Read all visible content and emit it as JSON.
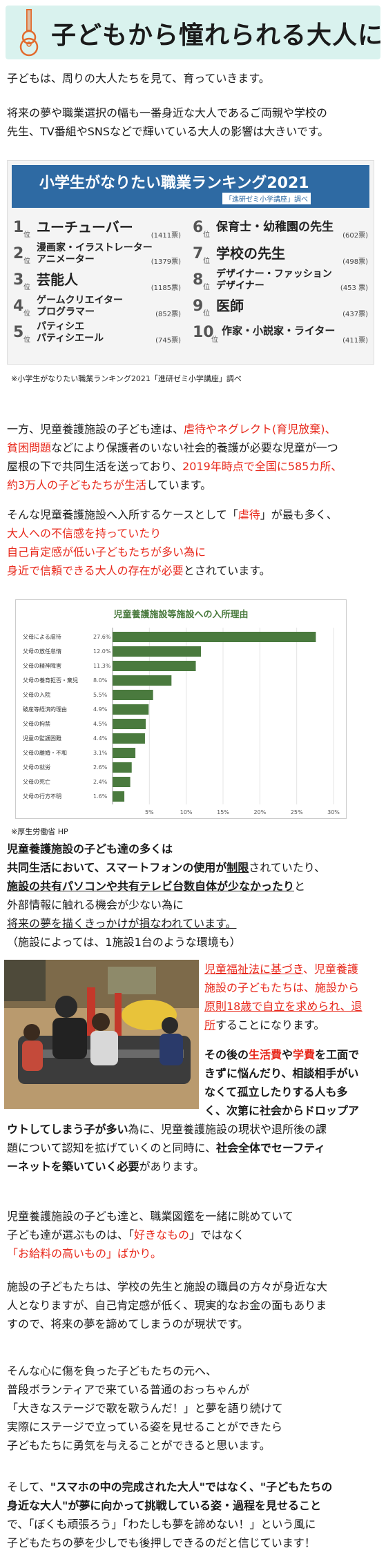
{
  "header": {
    "title": "子どもから憧れられる大人に",
    "bg_color": "#d9f2ee"
  },
  "intro": {
    "l1": "子どもは、周りの大人たちを見て、育っていきます。",
    "l2": "将来の夢や職業選択の幅も一番身近な大人であるご両親や学校の",
    "l3": "先生、TV番組やSNSなどで輝いている大人の影響は大きいです。"
  },
  "ranking": {
    "title": "小学生がなりたい職業ランキング2021",
    "subtitle": "「進研ゼミ小学講座」調べ",
    "items": [
      {
        "rank": "1",
        "pos": "位",
        "name1": "ユーチューバー",
        "name2": "",
        "votes": "(1411票)"
      },
      {
        "rank": "2",
        "pos": "位",
        "name1": "漫画家・イラストレーター",
        "name2": "アニメーター",
        "votes": "(1379票)"
      },
      {
        "rank": "3",
        "pos": "位",
        "name1": "芸能人",
        "name2": "",
        "votes": "(1185票)"
      },
      {
        "rank": "4",
        "pos": "位",
        "name1": "ゲームクリエイター",
        "name2": "プログラマー",
        "votes": "(852票)"
      },
      {
        "rank": "5",
        "pos": "位",
        "name1": "パティシエ",
        "name2": "パティシエール",
        "votes": "(745票)"
      },
      {
        "rank": "6",
        "pos": "位",
        "name1": "保育士・幼稚園の先生",
        "name2": "",
        "votes": "(602票)"
      },
      {
        "rank": "7",
        "pos": "位",
        "name1": "学校の先生",
        "name2": "",
        "votes": "(498票)"
      },
      {
        "rank": "8",
        "pos": "位",
        "name1": "デザイナー・ファッション",
        "name2": "デザイナー",
        "votes": "(453 票)"
      },
      {
        "rank": "9",
        "pos": "位",
        "name1": "医師",
        "name2": "",
        "votes": "(437票)"
      },
      {
        "rank": "10",
        "pos": "位",
        "name1": "作家・小説家・ライター",
        "name2": "",
        "votes": "(411票)"
      }
    ],
    "caption": "※小学生がなりたい職業ランキング2021「進研ゼミ小学講座」調べ"
  },
  "sec2": {
    "l1a": "一方、児童養護施設の子ども達は、",
    "l1b": "虐待やネグレクト(育児放棄)、",
    "l2a": "貧困問題",
    "l2b": "などにより保護者のいない社会的養護が必要な児童が一つ",
    "l3a": "屋根の下で共同生活を送っており、",
    "l3b": "2019年時点で全国に585カ所、",
    "l4a": "約3万人の子どもたちが生活",
    "l4b": "しています。"
  },
  "sec3": {
    "l1a": "そんな児童養護施設へ入所するケースとして「",
    "l1b": "虐待",
    "l1c": "」が最も多く、",
    "l2": "大人への不信感を持っていたり",
    "l3": "自己肯定感が低い子どもたちが多い為に",
    "l4a": "身近で信頼できる大人の存在が必要",
    "l4b": "とされています。"
  },
  "chart_data": {
    "type": "bar",
    "title": "児童養護施設等施設への入所理由",
    "categories": [
      "父母による虐待",
      "父母の放任怠惰",
      "父母の精神障害",
      "父母の養育拒否・棄児",
      "父母の入院",
      "破産等経済的理由",
      "父母の拘禁",
      "児童の監護困難",
      "父母の離婚・不和",
      "父母の就労",
      "父母の死亡",
      "父母の行方不明"
    ],
    "values": [
      27.6,
      12.0,
      11.3,
      8.0,
      5.5,
      4.9,
      4.5,
      4.4,
      3.1,
      2.6,
      2.4,
      1.6
    ],
    "labels": [
      "27.6%",
      "12.0%",
      "11.3%",
      "8.0%",
      "5.5%",
      "4.9%",
      "4.5%",
      "4.4%",
      "3.1%",
      "2.6%",
      "2.4%",
      "1.6%"
    ],
    "xticks": [
      "5%",
      "10%",
      "15%",
      "20%",
      "25%",
      "30%"
    ],
    "xlim": [
      0,
      30
    ],
    "bar_color": "#4a7a3e",
    "grid": true
  },
  "chart_caption": "※厚生労働省 HP",
  "sec4": {
    "l1": "児童養護施設の子ども達の多くは",
    "l2a": "共同生活において、スマートフォンの使用が",
    "l2b": "制限",
    "l2c": "されていたり、",
    "l3a": "施設の共有パソコンや共有テレビ台数自体が少なかったり",
    "l3b": "と",
    "l4": "外部情報に触れる機会が少ない為に",
    "l5": "将来の夢を描くきっかけが損なわれています。",
    "l6": "（施設によっては、1施設1台のような環境も）"
  },
  "side": {
    "l1a": "児童福祉法に基づき",
    "l1b": "、",
    "l1c": "児童養護",
    "l2": "施設の子どもたちは、施設から",
    "l3": "原則18歳で自立を求められ、退",
    "l4a": "所",
    "l4b": "することになります。",
    "l5a": "その後の",
    "l5b": "生活費",
    "l5c": "や",
    "l5d": "学費",
    "l5e": "を工面で",
    "l6": "きずに悩んだり、相談相手がい",
    "l7": "なくて孤立したりする人も多",
    "l8": "く、次第に社会からドロップア"
  },
  "sec5": {
    "l1a": "ウトしてしまう子が多い",
    "l1b": "為に、児童養護施設の現状や退所後の課",
    "l2a": "題について認知を拡げていくのと同時に、",
    "l2b": "社会全体でセーフティ",
    "l3a": "ーネットを築いていく必要",
    "l3b": "があります。"
  },
  "sec6": {
    "l1": "児童養護施設の子ども達と、職業図鑑を一緒に眺めていて",
    "l2a": "子ども達が選ぶものは、「",
    "l2b": "好きなもの",
    "l2c": "」ではなく",
    "l3a": "「",
    "l3b": "お給料の高いもの",
    "l3c": "」ばかり。"
  },
  "sec7": {
    "l1": "施設の子どもたちは、学校の先生と施設の職員の方々が身近な大",
    "l2": "人となりますが、自己肯定感が低く、現実的なお金の面もありま",
    "l3": "すので、将来の夢を諦めてしまうのが現状です。"
  },
  "sec8": {
    "l1": "そんな心に傷を負った子どもたちの元へ、",
    "l2": "普段ボランティアで来ている普通のおっちゃんが",
    "l3": "「大きなステージで歌を歌うんだ！」と夢を語り続けて",
    "l4": "実際にステージで立っている姿を見せることができたら",
    "l5": "子どもたちに勇気を与えることができると思います。"
  },
  "sec9": {
    "l1a": "そして、",
    "l1b": "\"スマホの中の完成された大人\"ではなく、\"子どもたちの",
    "l2": "身近な大人\"が夢に向かって挑戦している姿・過程を見せること",
    "l3": "で、「ぼくも頑張ろう」「わたしも夢を諦めない！」という風に",
    "l4": "子どもたちの夢を少しでも後押しできるのだと信じています！"
  }
}
